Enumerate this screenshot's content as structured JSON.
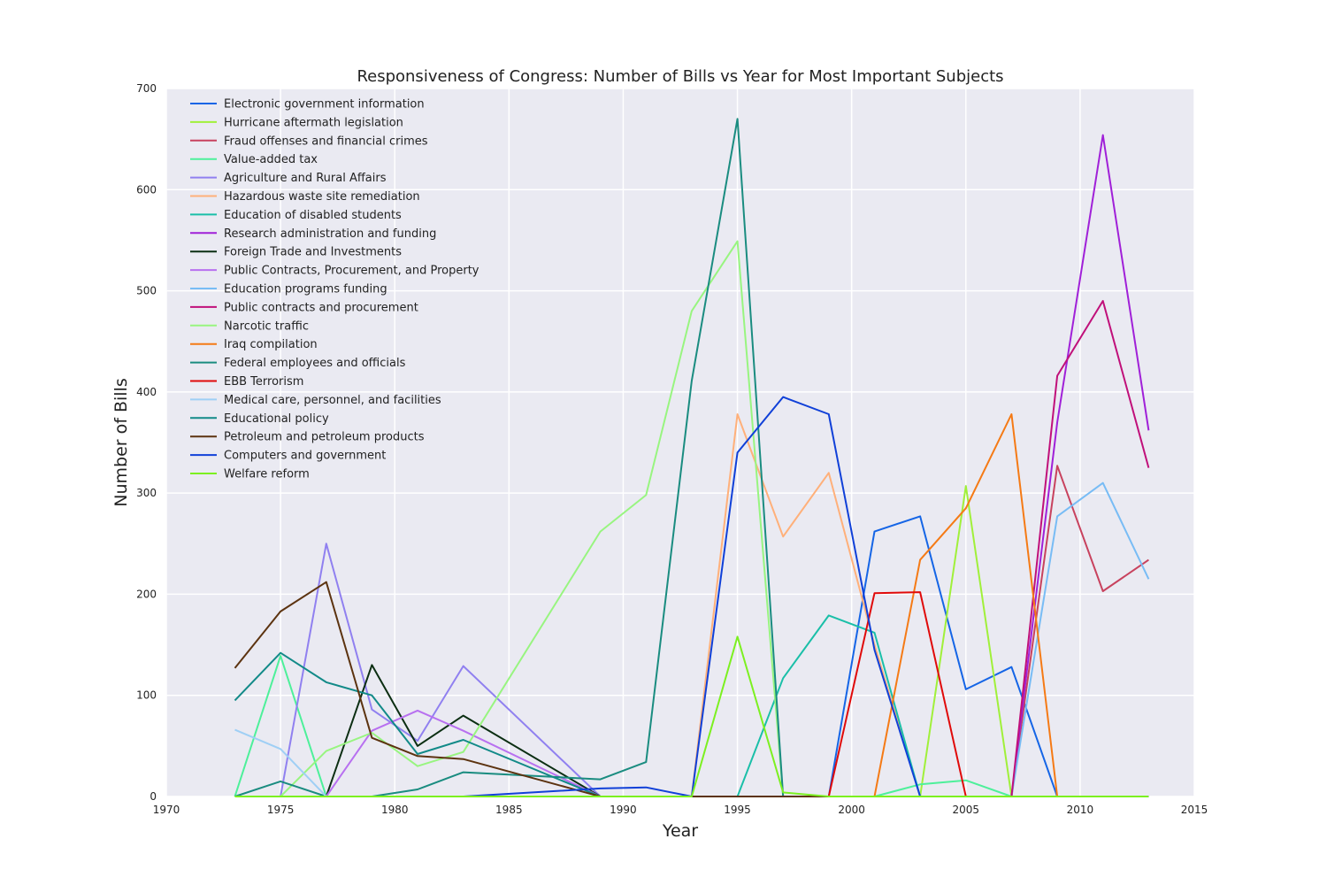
{
  "chart_data": {
    "type": "line",
    "title": "Responsiveness of Congress: Number of Bills vs Year for Most Important Subjects",
    "xlabel": "Year",
    "ylabel": "Number of Bills",
    "xlim": [
      1970,
      2015
    ],
    "ylim": [
      0,
      700
    ],
    "xticks": [
      1970,
      1975,
      1980,
      1985,
      1990,
      1995,
      2000,
      2005,
      2010,
      2015
    ],
    "yticks": [
      0,
      100,
      200,
      300,
      400,
      500,
      600,
      700
    ],
    "grid": true,
    "legend_position": "top-left",
    "plot_background": "#EAEAF2",
    "x": [
      1973,
      1975,
      1977,
      1979,
      1981,
      1983,
      1989,
      1991,
      1993,
      1995,
      1997,
      1999,
      2001,
      2003,
      2005,
      2007,
      2009,
      2011,
      2013
    ],
    "series": [
      {
        "name": "Electronic government information",
        "color": "#1565E6",
        "values": [
          0,
          0,
          0,
          0,
          0,
          0,
          0,
          0,
          0,
          0,
          0,
          0,
          262,
          277,
          106,
          128,
          0,
          0,
          0
        ]
      },
      {
        "name": "Hurricane aftermath legislation",
        "color": "#A0F03A",
        "values": [
          0,
          0,
          0,
          0,
          0,
          0,
          0,
          0,
          0,
          0,
          0,
          0,
          0,
          0,
          307,
          0,
          0,
          0,
          0
        ]
      },
      {
        "name": "Fraud offenses and financial crimes",
        "color": "#C8425E",
        "values": [
          0,
          0,
          0,
          0,
          0,
          0,
          0,
          0,
          0,
          0,
          0,
          0,
          0,
          0,
          0,
          0,
          327,
          203,
          234
        ]
      },
      {
        "name": "Value-added tax",
        "color": "#4DF09A",
        "values": [
          0,
          139,
          0,
          0,
          0,
          0,
          0,
          0,
          0,
          0,
          0,
          0,
          0,
          12,
          16,
          0,
          0,
          0,
          0
        ]
      },
      {
        "name": "Agriculture and Rural Affairs",
        "color": "#9080F0",
        "values": [
          0,
          0,
          250,
          86,
          55,
          129,
          0,
          0,
          0,
          0,
          0,
          0,
          0,
          0,
          0,
          0,
          0,
          0,
          0
        ]
      },
      {
        "name": "Hazardous waste site remediation",
        "color": "#FFB07A",
        "values": [
          0,
          0,
          0,
          0,
          0,
          0,
          0,
          0,
          0,
          378,
          257,
          320,
          150,
          0,
          0,
          0,
          0,
          0,
          0
        ]
      },
      {
        "name": "Education of disabled students",
        "color": "#1ABFA8",
        "values": [
          0,
          0,
          0,
          0,
          0,
          0,
          0,
          0,
          0,
          0,
          117,
          179,
          162,
          0,
          0,
          0,
          0,
          0,
          0
        ]
      },
      {
        "name": "Research administration and funding",
        "color": "#A020D8",
        "values": [
          0,
          0,
          0,
          0,
          0,
          0,
          0,
          0,
          0,
          0,
          0,
          0,
          0,
          0,
          0,
          0,
          370,
          654,
          362
        ]
      },
      {
        "name": "Foreign Trade and Investments",
        "color": "#0B2E12",
        "values": [
          0,
          0,
          0,
          130,
          50,
          80,
          0,
          0,
          0,
          0,
          0,
          0,
          0,
          0,
          0,
          0,
          0,
          0,
          0
        ]
      },
      {
        "name": "Public Contracts, Procurement, and Property",
        "color": "#B870F0",
        "values": [
          0,
          0,
          0,
          65,
          85,
          65,
          0,
          0,
          0,
          0,
          0,
          0,
          0,
          0,
          0,
          0,
          0,
          0,
          0
        ]
      },
      {
        "name": "Education programs funding",
        "color": "#78BCF5",
        "values": [
          0,
          0,
          0,
          0,
          0,
          0,
          0,
          0,
          0,
          0,
          0,
          0,
          0,
          0,
          0,
          0,
          277,
          310,
          215
        ]
      },
      {
        "name": "Public contracts and procurement",
        "color": "#C0107A",
        "values": [
          0,
          0,
          0,
          0,
          0,
          0,
          0,
          0,
          0,
          0,
          0,
          0,
          0,
          0,
          0,
          0,
          416,
          490,
          325
        ]
      },
      {
        "name": "Narcotic traffic",
        "color": "#98F580",
        "values": [
          0,
          0,
          45,
          63,
          30,
          44,
          262,
          298,
          480,
          549,
          0,
          0,
          0,
          0,
          0,
          0,
          0,
          0,
          0
        ]
      },
      {
        "name": "Iraq compilation",
        "color": "#F57A15",
        "values": [
          0,
          0,
          0,
          0,
          0,
          0,
          0,
          0,
          0,
          0,
          0,
          0,
          0,
          234,
          285,
          378,
          0,
          0,
          0
        ]
      },
      {
        "name": "Federal employees and officials",
        "color": "#1A8C80",
        "values": [
          0,
          15,
          0,
          0,
          7,
          24,
          17,
          34,
          411,
          670,
          0,
          0,
          0,
          0,
          0,
          0,
          0,
          0,
          0
        ]
      },
      {
        "name": "EBB Terrorism",
        "color": "#E00A0A",
        "values": [
          0,
          0,
          0,
          0,
          0,
          0,
          0,
          0,
          0,
          0,
          0,
          0,
          201,
          202,
          0,
          0,
          0,
          0,
          0
        ]
      },
      {
        "name": "Medical care, personnel, and facilities",
        "color": "#9FCFF5",
        "values": [
          66,
          47,
          0,
          0,
          0,
          0,
          0,
          0,
          0,
          0,
          0,
          0,
          0,
          0,
          0,
          0,
          0,
          0,
          0
        ]
      },
      {
        "name": "Educational policy",
        "color": "#128A88",
        "values": [
          95,
          142,
          113,
          100,
          42,
          56,
          0,
          0,
          0,
          0,
          0,
          0,
          0,
          0,
          0,
          0,
          0,
          0,
          0
        ]
      },
      {
        "name": "Petroleum and petroleum products",
        "color": "#5C3310",
        "values": [
          127,
          183,
          212,
          58,
          40,
          37,
          0,
          0,
          0,
          0,
          0,
          0,
          0,
          0,
          0,
          0,
          0,
          0,
          0
        ]
      },
      {
        "name": "Computers and government",
        "color": "#1040D8",
        "values": [
          0,
          0,
          0,
          0,
          0,
          0,
          8,
          9,
          0,
          340,
          395,
          378,
          145,
          0,
          0,
          0,
          0,
          0,
          0
        ]
      },
      {
        "name": "Welfare reform",
        "color": "#7CF020",
        "values": [
          0,
          0,
          0,
          0,
          0,
          0,
          0,
          0,
          0,
          158,
          4,
          0,
          0,
          0,
          0,
          0,
          0,
          0,
          0
        ]
      }
    ]
  }
}
